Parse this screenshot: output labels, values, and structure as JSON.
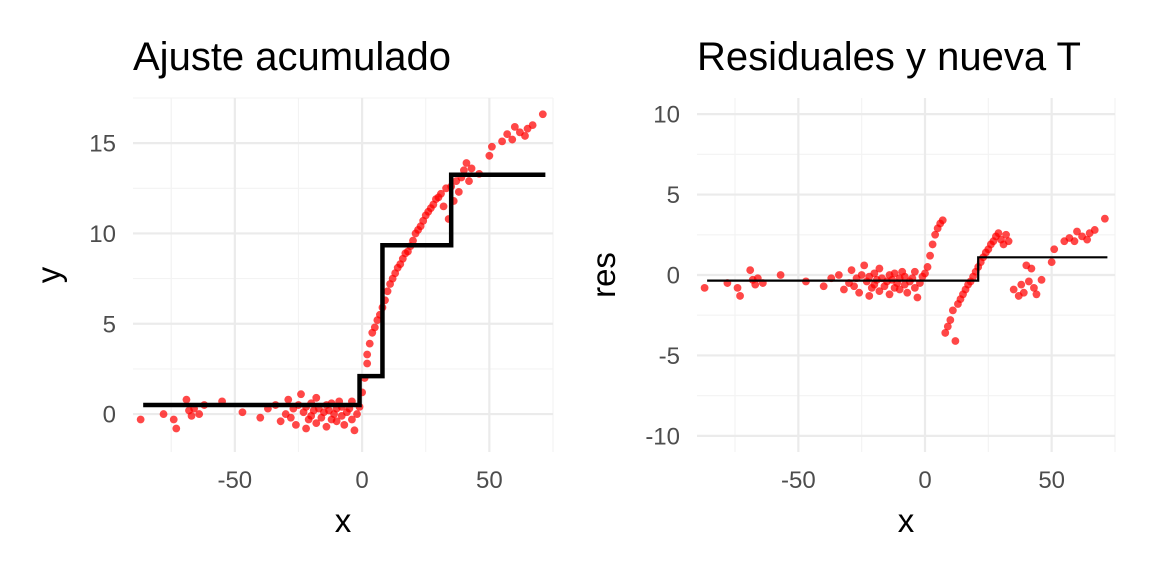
{
  "chart_data": [
    {
      "type": "scatter",
      "title": "Ajuste acumulado",
      "xlabel": "x",
      "ylabel": "y",
      "xlim": [
        -90,
        75
      ],
      "ylim": [
        -2.1,
        17.5
      ],
      "xticks": [
        -50,
        0,
        50
      ],
      "yticks": [
        0,
        5,
        10,
        15
      ],
      "x_tick_labels": [
        "-50",
        "0",
        "50"
      ],
      "y_tick_labels": [
        "0",
        "5",
        "10",
        "15"
      ],
      "grid": true,
      "legend": "none",
      "colors": {
        "points": "#ff0000",
        "line": "#000000"
      },
      "series": [
        {
          "kind": "points",
          "points": [
            [
              -87,
              -0.3
            ],
            [
              -78,
              0
            ],
            [
              -74,
              -0.3
            ],
            [
              -73,
              -0.8
            ],
            [
              -69,
              0.8
            ],
            [
              -68,
              0.2
            ],
            [
              -67,
              -0.1
            ],
            [
              -66,
              0.3
            ],
            [
              -64,
              0
            ],
            [
              -62,
              0.5
            ],
            [
              -55,
              0.7
            ],
            [
              -47,
              0.1
            ],
            [
              -40,
              -0.2
            ],
            [
              -37,
              0.3
            ],
            [
              -34,
              0.5
            ],
            [
              -32,
              -0.4
            ],
            [
              -30,
              0
            ],
            [
              -29,
              0.8
            ],
            [
              -28,
              -0.2
            ],
            [
              -27,
              0.3
            ],
            [
              -26,
              -0.6
            ],
            [
              -25,
              0.5
            ],
            [
              -24,
              1.1
            ],
            [
              -23,
              0.1
            ],
            [
              -22,
              -0.8
            ],
            [
              -22,
              0.4
            ],
            [
              -21,
              -0.3
            ],
            [
              -20,
              0.6
            ],
            [
              -20,
              -0.1
            ],
            [
              -19,
              0.2
            ],
            [
              -18,
              -0.5
            ],
            [
              -18,
              0.9
            ],
            [
              -17,
              0.3
            ],
            [
              -16,
              -0.2
            ],
            [
              -15,
              0.1
            ],
            [
              -14,
              0.5
            ],
            [
              -14,
              -0.7
            ],
            [
              -13,
              0.2
            ],
            [
              -12,
              -0.3
            ],
            [
              -12,
              0.6
            ],
            [
              -11,
              0
            ],
            [
              -10,
              -0.4
            ],
            [
              -10,
              0.3
            ],
            [
              -9,
              0.7
            ],
            [
              -8,
              -0.1
            ],
            [
              -8,
              0.4
            ],
            [
              -7,
              -0.6
            ],
            [
              -6,
              0.1
            ],
            [
              -5,
              0.3
            ],
            [
              -4,
              -0.3
            ],
            [
              -4,
              0.7
            ],
            [
              -3,
              -0.9
            ],
            [
              -2,
              0
            ],
            [
              -1,
              0.4
            ],
            [
              0,
              1.2
            ],
            [
              1,
              2
            ],
            [
              2,
              2.8
            ],
            [
              2,
              3.3
            ],
            [
              3,
              3.9
            ],
            [
              4,
              4.5
            ],
            [
              5,
              4.8
            ],
            [
              6,
              5.2
            ],
            [
              7,
              5.5
            ],
            [
              8,
              5.9
            ],
            [
              9,
              6.3
            ],
            [
              10,
              6.8
            ],
            [
              11,
              7.2
            ],
            [
              12,
              7.5
            ],
            [
              13,
              7.8
            ],
            [
              14,
              8.1
            ],
            [
              15,
              8.3
            ],
            [
              16,
              8.6
            ],
            [
              17,
              8.9
            ],
            [
              18,
              9
            ],
            [
              19,
              9.3
            ],
            [
              20,
              9.6
            ],
            [
              21,
              10
            ],
            [
              22,
              10.2
            ],
            [
              23,
              10.4
            ],
            [
              24,
              10.7
            ],
            [
              25,
              11
            ],
            [
              26,
              11.2
            ],
            [
              27,
              11.4
            ],
            [
              28,
              11.6
            ],
            [
              29,
              11.9
            ],
            [
              30,
              12
            ],
            [
              31,
              12.2
            ],
            [
              32,
              11.5
            ],
            [
              33,
              12.5
            ],
            [
              34,
              10.8
            ],
            [
              35,
              12.6
            ],
            [
              36,
              11.8
            ],
            [
              37,
              12.9
            ],
            [
              38,
              12.3
            ],
            [
              39,
              13.1
            ],
            [
              40,
              13.5
            ],
            [
              41,
              13.9
            ],
            [
              42,
              12.9
            ],
            [
              43,
              13.6
            ],
            [
              46,
              13.3
            ],
            [
              50,
              14.3
            ],
            [
              51,
              14.8
            ],
            [
              55,
              15.1
            ],
            [
              57,
              15.5
            ],
            [
              59,
              15.2
            ],
            [
              60,
              15.9
            ],
            [
              62,
              15.6
            ],
            [
              64,
              15.4
            ],
            [
              65,
              15.8
            ],
            [
              67,
              16.0
            ],
            [
              71,
              16.6
            ]
          ]
        },
        {
          "kind": "step-line",
          "points": [
            [
              -86,
              0.5
            ],
            [
              -1,
              0.5
            ],
            [
              -1,
              2.1
            ],
            [
              8,
              2.1
            ],
            [
              8,
              9.35
            ],
            [
              35,
              9.35
            ],
            [
              35,
              13.25
            ],
            [
              72,
              13.25
            ]
          ]
        }
      ]
    },
    {
      "type": "scatter",
      "title": "Residuales y nueva T",
      "xlabel": "x",
      "ylabel": "res",
      "xlim": [
        -90,
        75
      ],
      "ylim": [
        -11,
        11
      ],
      "xticks": [
        -50,
        0,
        50
      ],
      "yticks": [
        -10,
        -5,
        0,
        5,
        10
      ],
      "x_tick_labels": [
        "-50",
        "0",
        "50"
      ],
      "y_tick_labels": [
        "-10",
        "-5",
        "0",
        "5",
        "10"
      ],
      "grid": true,
      "legend": "none",
      "colors": {
        "points": "#ff0000",
        "line": "#000000"
      },
      "series": [
        {
          "kind": "points",
          "points": [
            [
              -87,
              -0.8
            ],
            [
              -78,
              -0.5
            ],
            [
              -74,
              -0.8
            ],
            [
              -73,
              -1.3
            ],
            [
              -69,
              0.3
            ],
            [
              -68,
              -0.3
            ],
            [
              -67,
              -0.6
            ],
            [
              -66,
              -0.2
            ],
            [
              -64,
              -0.5
            ],
            [
              -57,
              0
            ],
            [
              -47,
              -0.4
            ],
            [
              -40,
              -0.7
            ],
            [
              -37,
              -0.2
            ],
            [
              -34,
              0
            ],
            [
              -32,
              -0.9
            ],
            [
              -30,
              -0.5
            ],
            [
              -29,
              0.3
            ],
            [
              -28,
              -0.7
            ],
            [
              -27,
              -0.2
            ],
            [
              -26,
              -1.1
            ],
            [
              -25,
              0
            ],
            [
              -24,
              0.6
            ],
            [
              -23,
              -0.4
            ],
            [
              -22,
              -1.3
            ],
            [
              -22,
              -0.1
            ],
            [
              -21,
              -0.8
            ],
            [
              -20,
              0.1
            ],
            [
              -20,
              -0.6
            ],
            [
              -19,
              -0.3
            ],
            [
              -18,
              -1
            ],
            [
              -18,
              0.4
            ],
            [
              -17,
              -0.2
            ],
            [
              -16,
              -0.7
            ],
            [
              -15,
              -0.4
            ],
            [
              -14,
              0
            ],
            [
              -14,
              -1.2
            ],
            [
              -13,
              -0.3
            ],
            [
              -12,
              -0.8
            ],
            [
              -12,
              0.1
            ],
            [
              -11,
              -0.5
            ],
            [
              -10,
              -0.9
            ],
            [
              -10,
              -0.2
            ],
            [
              -9,
              0.2
            ],
            [
              -8,
              -0.6
            ],
            [
              -8,
              -0.1
            ],
            [
              -7,
              -1.1
            ],
            [
              -6,
              -0.4
            ],
            [
              -5,
              -0.2
            ],
            [
              -4,
              -0.8
            ],
            [
              -4,
              0.2
            ],
            [
              -3,
              -1.4
            ],
            [
              -2,
              -0.5
            ],
            [
              -1,
              -0.1
            ],
            [
              0,
              0.1
            ],
            [
              1,
              0.5
            ],
            [
              2,
              1.2
            ],
            [
              3,
              1.9
            ],
            [
              4,
              2.5
            ],
            [
              5,
              2.9
            ],
            [
              6,
              3.2
            ],
            [
              7,
              3.4
            ],
            [
              8,
              -3.6
            ],
            [
              9,
              -3.2
            ],
            [
              10,
              -2.8
            ],
            [
              11,
              -2.2
            ],
            [
              12,
              -4.1
            ],
            [
              13,
              -1.8
            ],
            [
              14,
              -1.5
            ],
            [
              15,
              -1.2
            ],
            [
              16,
              -0.9
            ],
            [
              17,
              -0.6
            ],
            [
              18,
              -0.4
            ],
            [
              19,
              -0.1
            ],
            [
              20,
              0.2
            ],
            [
              21,
              0.5
            ],
            [
              22,
              0.8
            ],
            [
              23,
              1.1
            ],
            [
              24,
              1.4
            ],
            [
              25,
              1.6
            ],
            [
              26,
              1.9
            ],
            [
              27,
              2.1
            ],
            [
              28,
              2.4
            ],
            [
              29,
              2.6
            ],
            [
              30,
              2.2
            ],
            [
              31,
              1.9
            ],
            [
              32,
              2.5
            ],
            [
              33,
              2.1
            ],
            [
              35,
              -0.9
            ],
            [
              37,
              -1.3
            ],
            [
              38,
              -0.6
            ],
            [
              39,
              -1.1
            ],
            [
              40,
              0.6
            ],
            [
              41,
              -0.4
            ],
            [
              42,
              0.4
            ],
            [
              43,
              -0.8
            ],
            [
              44,
              -1.2
            ],
            [
              46,
              -0.3
            ],
            [
              50,
              0.8
            ],
            [
              51,
              1.6
            ],
            [
              55,
              2.1
            ],
            [
              57,
              2.3
            ],
            [
              59,
              2.1
            ],
            [
              60,
              2.7
            ],
            [
              62,
              2.4
            ],
            [
              64,
              2.2
            ],
            [
              65,
              2.6
            ],
            [
              67,
              2.8
            ],
            [
              71,
              3.5
            ]
          ]
        },
        {
          "kind": "step-line",
          "points": [
            [
              -86,
              -0.35
            ],
            [
              21,
              -0.35
            ],
            [
              21,
              1.1
            ],
            [
              72,
              1.1
            ]
          ]
        }
      ]
    }
  ]
}
